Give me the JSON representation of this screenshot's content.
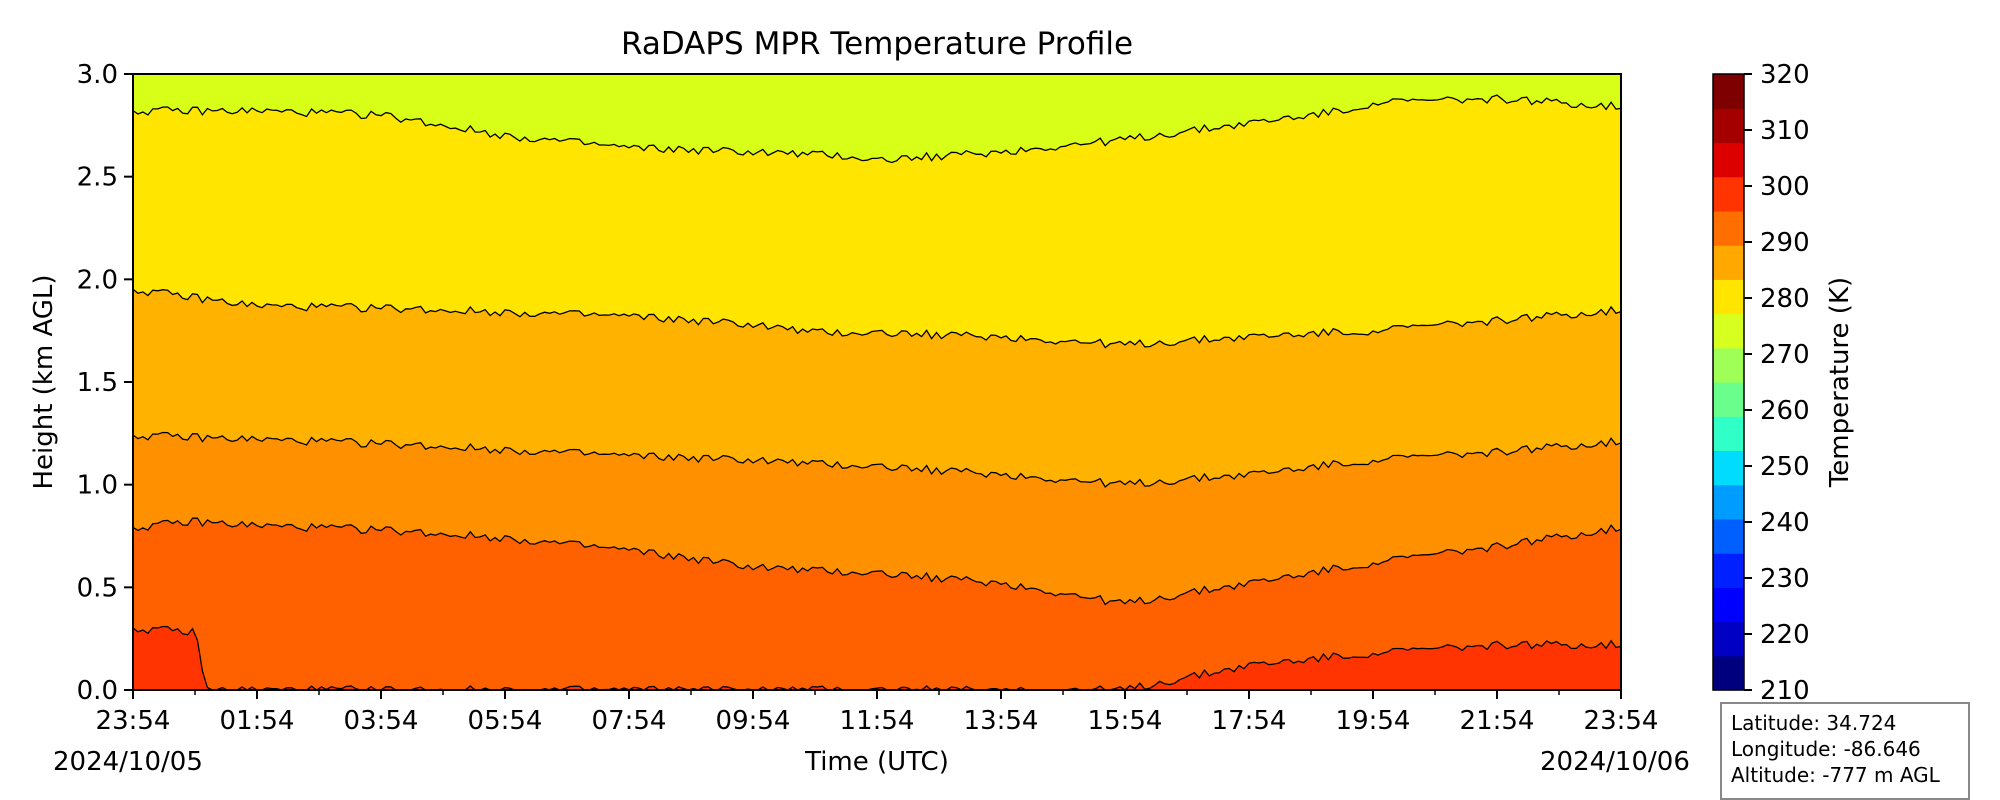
{
  "chart_data": {
    "type": "heatmap",
    "title": "RaDAPS MPR Temperature Profile",
    "xlabel": "Time (UTC)",
    "ylabel": "Height (km AGL)",
    "x_ticks": [
      "23:54",
      "01:54",
      "03:54",
      "05:54",
      "07:54",
      "09:54",
      "11:54",
      "13:54",
      "15:54",
      "17:54",
      "19:54",
      "21:54",
      "23:54"
    ],
    "x_start_date": "2024/10/05",
    "x_end_date": "2024/10/06",
    "y_ticks": [
      "0.0",
      "0.5",
      "1.0",
      "1.5",
      "2.0",
      "2.5",
      "3.0"
    ],
    "ylim": [
      0,
      3
    ],
    "colorbar": {
      "label": "Temperature (K)",
      "ticks": [
        "320",
        "310",
        "300",
        "290",
        "280",
        "270",
        "260",
        "250",
        "240",
        "230",
        "220",
        "210"
      ],
      "range": [
        210,
        320
      ],
      "step": 5,
      "colormap": "jet",
      "colors": [
        "#00007f",
        "#0000c4",
        "#0000ff",
        "#0020ff",
        "#0060ff",
        "#009cff",
        "#00dcfe",
        "#30ffc7",
        "#6aff8d",
        "#a0ff56",
        "#d7ff20",
        "#ffe500",
        "#ffa800",
        "#ff6e00",
        "#ff3400",
        "#dd0000",
        "#a40000",
        "#7f0000"
      ]
    },
    "contour_fills": [
      {
        "temperature_band": "300-305",
        "color": "#ff3400"
      },
      {
        "temperature_band": "295-300",
        "color": "#ff6000"
      },
      {
        "temperature_band": "290-295",
        "color": "#ff9100"
      },
      {
        "temperature_band": "285-290",
        "color": "#ffb300"
      },
      {
        "temperature_band": "280-285",
        "color": "#ffe500"
      },
      {
        "temperature_band": "275-280",
        "color": "#d8ff18"
      }
    ],
    "contour_lines_height_km": [
      {
        "level": "280 K",
        "x_hours": [
          0,
          2,
          4,
          6,
          8,
          10,
          11.5,
          12,
          14,
          16,
          18,
          19.5,
          20,
          22,
          24
        ],
        "heights": [
          null,
          2.82,
          2.8,
          2.7,
          2.64,
          2.62,
          2.6,
          2.58,
          2.62,
          2.68,
          2.76,
          2.82,
          2.86,
          2.88,
          2.84
        ]
      },
      {
        "level": "285 K",
        "x_hours": [
          0,
          2,
          4,
          6,
          8,
          10,
          11,
          12,
          14,
          16,
          18,
          20,
          22,
          24
        ],
        "heights": [
          1.95,
          1.87,
          1.86,
          1.84,
          1.82,
          1.78,
          1.74,
          1.74,
          1.72,
          1.68,
          1.72,
          1.75,
          1.8,
          1.85
        ]
      },
      {
        "level": "290 K",
        "x_hours": [
          0,
          2,
          4,
          6,
          8,
          10,
          11,
          12,
          14,
          16,
          18,
          20,
          22,
          24
        ],
        "heights": [
          1.24,
          1.22,
          1.2,
          1.17,
          1.14,
          1.12,
          1.1,
          1.09,
          1.05,
          1.0,
          1.05,
          1.12,
          1.16,
          1.21
        ]
      },
      {
        "level": "295 K",
        "x_hours": [
          0,
          1,
          2,
          4,
          6,
          8,
          10,
          11,
          12,
          14,
          16,
          18,
          20,
          22,
          24
        ],
        "heights": [
          0.79,
          0.82,
          0.8,
          0.78,
          0.74,
          0.68,
          0.6,
          0.58,
          0.57,
          0.52,
          0.42,
          0.52,
          0.62,
          0.7,
          0.79
        ]
      },
      {
        "level": "300 K",
        "x_hours": [
          0,
          1,
          1.2,
          16,
          18,
          20,
          22,
          24
        ],
        "heights": [
          0.3,
          0.28,
          0.0,
          0.0,
          0.12,
          0.18,
          0.22,
          0.22
        ]
      }
    ]
  },
  "info": {
    "latitude": "Latitude: 34.724",
    "longitude": "Longitude: -86.646",
    "altitude": "Altitude: -777 m AGL"
  }
}
